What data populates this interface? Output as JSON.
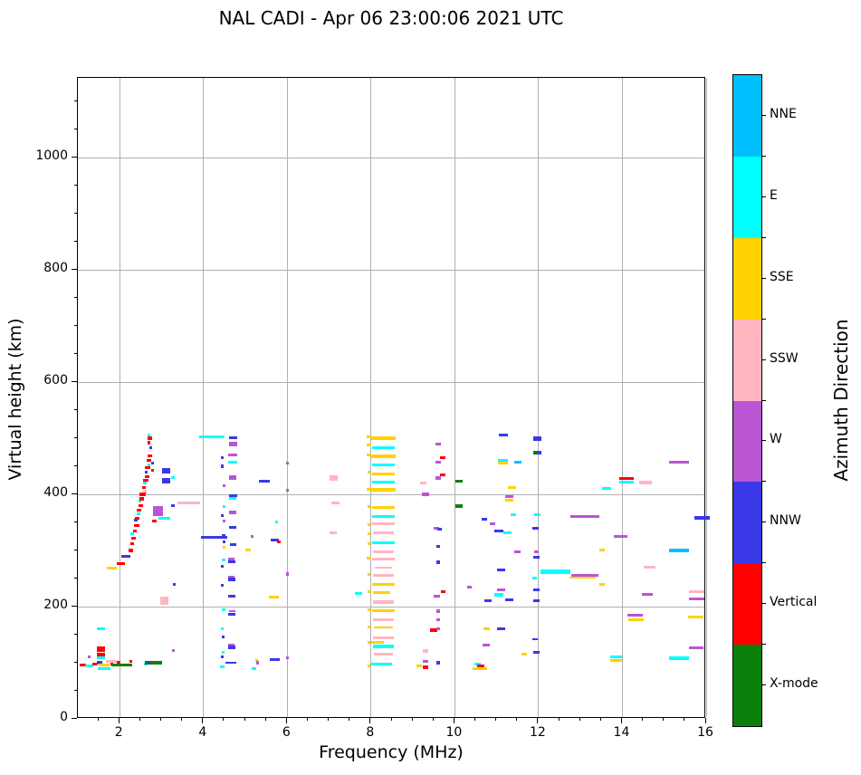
{
  "title": "NAL CADI - Apr 06 23:00:06 2021 UTC",
  "chart_data": {
    "type": "scatter",
    "title": "NAL CADI - Apr 06 23:00:06 2021 UTC",
    "xlabel": "Frequency (MHz)",
    "ylabel": "Virtual height (km)",
    "xlim": [
      1.0,
      16.0
    ],
    "ylim": [
      0,
      1142
    ],
    "x_ticks": [
      2,
      4,
      6,
      8,
      10,
      12,
      14,
      16
    ],
    "y_ticks": [
      0,
      200,
      400,
      600,
      800,
      1000
    ],
    "x_minor_step": 0.5,
    "y_minor_step": 50,
    "grid": true,
    "marker": "horizontal-dash",
    "legend": {
      "title": "Azimuth Direction",
      "position": "right-colorbar",
      "entries_top_to_bottom": [
        "NNE",
        "E",
        "SSE",
        "SSW",
        "W",
        "NNW",
        "Vertical",
        "X-mode"
      ]
    },
    "direction_codes": {
      "NNE": "NNE",
      "E": "E",
      "SSE": "SSE",
      "SSW": "SSW",
      "W": "W",
      "NNW": "NNW",
      "V": "Vertical",
      "X": "X-mode"
    },
    "colors": {
      "NNE": "#00BFFF",
      "E": "#00FFFF",
      "SSE": "#FFD200",
      "SSW": "#FFB6C1",
      "W": "#BA55D3",
      "NNW": "#3939E8",
      "V": "#FF0000",
      "X": "#0B800B"
    },
    "point_format": [
      "freq_MHz",
      "height_km",
      "direction_code",
      "span_MHz_optional",
      "span_km_optional"
    ],
    "points": [
      [
        1.12,
        96,
        "V",
        0.16
      ],
      [
        1.27,
        94,
        "E",
        0.18
      ],
      [
        1.28,
        111,
        "W",
        0.06
      ],
      [
        1.4,
        98,
        "V",
        0.12
      ],
      [
        1.52,
        100,
        "NNW",
        0.14
      ],
      [
        1.55,
        160,
        "E",
        0.2
      ],
      [
        1.55,
        124,
        "V",
        0.2,
        9
      ],
      [
        1.55,
        115,
        "V",
        0.18,
        6
      ],
      [
        1.55,
        109,
        "E",
        0.2
      ],
      [
        1.62,
        96,
        "SSE",
        0.26
      ],
      [
        1.62,
        89,
        "E",
        0.3
      ],
      [
        1.8,
        103,
        "SSW",
        0.28
      ],
      [
        1.8,
        97,
        "V",
        0.06
      ],
      [
        1.82,
        269,
        "SSE",
        0.24
      ],
      [
        1.97,
        101,
        "V",
        0.1
      ],
      [
        2.03,
        277,
        "V",
        0.18
      ],
      [
        2.05,
        96,
        "X",
        0.48
      ],
      [
        2.26,
        102,
        "V",
        0.06
      ],
      [
        2.15,
        290,
        "NNW",
        0.22
      ],
      [
        2.26,
        300,
        "V",
        0.1
      ],
      [
        2.3,
        312,
        "V",
        0.1
      ],
      [
        2.3,
        330,
        "E",
        0.08
      ],
      [
        2.33,
        322,
        "V",
        0.12
      ],
      [
        2.36,
        334,
        "V",
        0.1
      ],
      [
        2.38,
        354,
        "NNW",
        0.08
      ],
      [
        2.4,
        345,
        "V",
        0.12
      ],
      [
        2.42,
        358,
        "V",
        0.1
      ],
      [
        2.45,
        365,
        "E",
        0.08
      ],
      [
        2.46,
        372,
        "V",
        0.12
      ],
      [
        2.48,
        388,
        "E",
        0.07
      ],
      [
        2.5,
        380,
        "V",
        0.1
      ],
      [
        2.52,
        392,
        "V",
        0.1
      ],
      [
        2.55,
        400,
        "V",
        0.14
      ],
      [
        2.58,
        412,
        "V",
        0.1
      ],
      [
        2.6,
        405,
        "SSW",
        0.08
      ],
      [
        2.6,
        420,
        "E",
        0.08
      ],
      [
        2.62,
        425,
        "V",
        0.12
      ],
      [
        2.62,
        97,
        "E",
        0.07
      ],
      [
        2.65,
        432,
        "V",
        0.1
      ],
      [
        2.63,
        440,
        "NNW",
        0.08
      ],
      [
        2.67,
        447,
        "V",
        0.12
      ],
      [
        2.7,
        453,
        "E",
        0.08
      ],
      [
        2.7,
        460,
        "V",
        0.1
      ],
      [
        2.7,
        492,
        "V",
        0.08
      ],
      [
        2.7,
        505,
        "E",
        0.06
      ],
      [
        2.72,
        468,
        "V",
        0.12
      ],
      [
        2.72,
        500,
        "V",
        0.1
      ],
      [
        2.74,
        483,
        "NNW",
        0.08
      ],
      [
        2.78,
        455,
        "NNW",
        0.07
      ],
      [
        2.78,
        443,
        "V",
        0.08
      ],
      [
        2.8,
        100,
        "X",
        0.42
      ],
      [
        2.7,
        100,
        "NNW",
        0.07
      ],
      [
        2.82,
        352,
        "V",
        0.1
      ],
      [
        2.92,
        370,
        "W",
        0.24,
        18
      ],
      [
        3.06,
        357,
        "E",
        0.27
      ],
      [
        3.06,
        210,
        "SSW",
        0.2,
        14
      ],
      [
        3.1,
        442,
        "NNW",
        0.2,
        10
      ],
      [
        3.1,
        424,
        "NNW",
        0.2,
        10
      ],
      [
        3.27,
        430,
        "E",
        0.07
      ],
      [
        3.27,
        380,
        "NNW",
        0.07
      ],
      [
        3.27,
        122,
        "W",
        0.06
      ],
      [
        3.3,
        240,
        "NNW",
        0.07
      ],
      [
        3.65,
        384,
        "SSW",
        0.55,
        5
      ],
      [
        4.2,
        503,
        "E",
        0.6
      ],
      [
        4.25,
        323,
        "NNW",
        0.62
      ],
      [
        4.7,
        501,
        "NNW",
        0.2
      ],
      [
        4.7,
        490,
        "W",
        0.2,
        8
      ],
      [
        4.7,
        470,
        "W",
        0.22
      ],
      [
        4.45,
        465,
        "NNW",
        0.08
      ],
      [
        4.7,
        458,
        "E",
        0.22
      ],
      [
        4.45,
        450,
        "NNW",
        0.08
      ],
      [
        4.7,
        430,
        "W",
        0.18,
        7
      ],
      [
        4.5,
        415,
        "W",
        0.05
      ],
      [
        4.7,
        398,
        "NNW",
        0.2
      ],
      [
        4.7,
        393,
        "E",
        0.16
      ],
      [
        4.5,
        378,
        "E",
        0.06
      ],
      [
        4.7,
        368,
        "W",
        0.18,
        7
      ],
      [
        4.45,
        362,
        "NNW",
        0.07
      ],
      [
        4.5,
        352,
        "W",
        0.05
      ],
      [
        4.7,
        341,
        "NNW",
        0.16
      ],
      [
        4.48,
        327,
        "NNW",
        0.07
      ],
      [
        4.5,
        316,
        "NNW",
        0.06
      ],
      [
        4.7,
        310,
        "NNW",
        0.15
      ],
      [
        4.5,
        306,
        "SSE",
        0.05
      ],
      [
        4.48,
        283,
        "E",
        0.07
      ],
      [
        4.67,
        285,
        "W",
        0.16,
        4
      ],
      [
        4.67,
        280,
        "NNW",
        0.18,
        6
      ],
      [
        4.45,
        272,
        "NNW",
        0.07
      ],
      [
        4.67,
        253,
        "W",
        0.16,
        4
      ],
      [
        4.67,
        248,
        "NNW",
        0.18,
        6
      ],
      [
        4.45,
        238,
        "NNW",
        0.07
      ],
      [
        4.67,
        219,
        "NNW",
        0.17
      ],
      [
        4.48,
        195,
        "E",
        0.07
      ],
      [
        4.68,
        192,
        "W",
        0.16,
        4
      ],
      [
        4.68,
        187,
        "NNW",
        0.17,
        5
      ],
      [
        4.45,
        160,
        "E",
        0.07
      ],
      [
        4.47,
        146,
        "NNW",
        0.07
      ],
      [
        4.67,
        132,
        "W",
        0.16,
        4
      ],
      [
        4.67,
        127,
        "NNW",
        0.17,
        6
      ],
      [
        4.47,
        118,
        "E",
        0.07
      ],
      [
        4.44,
        110,
        "NNW",
        0.07
      ],
      [
        4.65,
        100,
        "NNW",
        0.26,
        3
      ],
      [
        4.45,
        93,
        "E",
        0.1
      ],
      [
        5.06,
        301,
        "SSE",
        0.14
      ],
      [
        5.17,
        325,
        "W",
        0.06
      ],
      [
        5.2,
        90,
        "E",
        0.12
      ],
      [
        5.27,
        104,
        "SSE",
        0.05
      ],
      [
        5.28,
        100,
        "W",
        0.06
      ],
      [
        5.45,
        423,
        "NNW",
        0.26
      ],
      [
        5.68,
        217,
        "SSE",
        0.24
      ],
      [
        5.7,
        319,
        "NNW",
        0.2
      ],
      [
        5.8,
        316,
        "V",
        0.07
      ],
      [
        5.75,
        351,
        "E",
        0.06
      ],
      [
        5.7,
        106,
        "NNW",
        0.24
      ],
      [
        6.0,
        455,
        "W",
        0.05
      ],
      [
        6.0,
        408,
        "W",
        0.05
      ],
      [
        6.0,
        258,
        "W",
        0.05
      ],
      [
        6.0,
        109,
        "W",
        0.05
      ],
      [
        7.1,
        432,
        "SSW",
        0.2
      ],
      [
        7.1,
        426,
        "SSW",
        0.2
      ],
      [
        7.15,
        385,
        "SSW",
        0.2
      ],
      [
        7.1,
        332,
        "SSW",
        0.18
      ],
      [
        7.7,
        224,
        "E",
        0.16
      ],
      [
        8.3,
        500,
        "SSE",
        0.58,
        6
      ],
      [
        8.3,
        483,
        "E",
        0.55
      ],
      [
        8.3,
        468,
        "SSE",
        0.58,
        6
      ],
      [
        8.3,
        453,
        "E",
        0.55
      ],
      [
        8.3,
        437,
        "SSE",
        0.55
      ],
      [
        8.3,
        422,
        "E",
        0.55
      ],
      [
        8.3,
        408,
        "SSE",
        0.58,
        6
      ],
      [
        8.3,
        376,
        "SSE",
        0.55
      ],
      [
        8.3,
        361,
        "E",
        0.55
      ],
      [
        8.3,
        347,
        "SSW",
        0.55
      ],
      [
        8.3,
        331,
        "SSW",
        0.5
      ],
      [
        8.3,
        313,
        "E",
        0.55
      ],
      [
        8.3,
        298,
        "SSW",
        0.5
      ],
      [
        8.3,
        284,
        "SSW",
        0.55
      ],
      [
        8.3,
        270,
        "SSW",
        0.4,
        3
      ],
      [
        8.3,
        255,
        "SSW",
        0.5
      ],
      [
        8.3,
        240,
        "SSE",
        0.55
      ],
      [
        8.25,
        225,
        "SSE",
        0.42
      ],
      [
        8.3,
        208,
        "SSW",
        0.5
      ],
      [
        8.3,
        193,
        "SSE",
        0.55
      ],
      [
        8.3,
        177,
        "SSW",
        0.5
      ],
      [
        8.3,
        163,
        "SSE",
        0.45,
        3
      ],
      [
        8.3,
        145,
        "SSW",
        0.5
      ],
      [
        8.15,
        137,
        "SSE",
        0.3
      ],
      [
        8.3,
        129,
        "E",
        0.5
      ],
      [
        8.3,
        115,
        "SSW",
        0.45
      ],
      [
        8.25,
        97,
        "E",
        0.5
      ],
      [
        7.95,
        502,
        "SSE",
        0.1
      ],
      [
        7.95,
        488,
        "SSE",
        0.1
      ],
      [
        7.95,
        470,
        "SSE",
        0.1
      ],
      [
        7.95,
        440,
        "SSE",
        0.08
      ],
      [
        7.95,
        409,
        "SSE",
        0.1
      ],
      [
        7.95,
        378,
        "SSE",
        0.08
      ],
      [
        7.95,
        346,
        "SSE",
        0.08
      ],
      [
        7.95,
        330,
        "SSE",
        0.08
      ],
      [
        7.95,
        312,
        "SSE",
        0.08
      ],
      [
        7.95,
        286,
        "SSE",
        0.1
      ],
      [
        7.95,
        257,
        "SSE",
        0.08
      ],
      [
        7.95,
        226,
        "SSE",
        0.08
      ],
      [
        7.95,
        194,
        "SSE",
        0.08
      ],
      [
        7.95,
        163,
        "SSE",
        0.08
      ],
      [
        7.95,
        137,
        "SSE",
        0.08
      ],
      [
        7.95,
        95,
        "SSE",
        0.08
      ],
      [
        9.25,
        420,
        "SSW",
        0.16
      ],
      [
        9.3,
        400,
        "W",
        0.16
      ],
      [
        9.6,
        490,
        "W",
        0.13
      ],
      [
        9.6,
        458,
        "W",
        0.13
      ],
      [
        9.72,
        466,
        "V",
        0.13
      ],
      [
        9.6,
        429,
        "W",
        0.13
      ],
      [
        9.72,
        435,
        "V",
        0.13
      ],
      [
        9.57,
        340,
        "W",
        0.13
      ],
      [
        9.63,
        338,
        "NNW",
        0.1
      ],
      [
        9.6,
        308,
        "NNW",
        0.1
      ],
      [
        9.6,
        279,
        "NNW",
        0.1
      ],
      [
        9.57,
        219,
        "W",
        0.14
      ],
      [
        9.72,
        227,
        "V",
        0.1
      ],
      [
        9.6,
        192,
        "W",
        0.1
      ],
      [
        9.6,
        177,
        "W",
        0.1
      ],
      [
        9.5,
        158,
        "V",
        0.17
      ],
      [
        9.6,
        160,
        "W",
        0.1
      ],
      [
        9.3,
        121,
        "SSW",
        0.15
      ],
      [
        9.3,
        103,
        "W",
        0.15
      ],
      [
        9.15,
        95,
        "SSE",
        0.12
      ],
      [
        9.3,
        92,
        "V",
        0.15
      ],
      [
        9.6,
        100,
        "NNW",
        0.1
      ],
      [
        10.1,
        423,
        "X",
        0.18
      ],
      [
        10.1,
        379,
        "X",
        0.18
      ],
      [
        10.35,
        235,
        "W",
        0.12
      ],
      [
        10.55,
        98,
        "E",
        0.15
      ],
      [
        10.62,
        95,
        "V",
        0.18
      ],
      [
        10.6,
        90,
        "SSE",
        0.36
      ],
      [
        10.75,
        161,
        "SSE",
        0.15
      ],
      [
        10.75,
        131,
        "W",
        0.17
      ],
      [
        10.7,
        355,
        "NNW",
        0.14
      ],
      [
        10.8,
        211,
        "NNW",
        0.17
      ],
      [
        10.9,
        347,
        "W",
        0.12
      ],
      [
        11.15,
        505,
        "NNW",
        0.22
      ],
      [
        11.15,
        461,
        "E",
        0.24
      ],
      [
        11.15,
        455,
        "SSE",
        0.24
      ],
      [
        11.5,
        458,
        "NNE",
        0.18
      ],
      [
        11.37,
        412,
        "SSE",
        0.2
      ],
      [
        11.3,
        396,
        "W",
        0.2
      ],
      [
        11.3,
        390,
        "SSE",
        0.18
      ],
      [
        11.4,
        364,
        "E",
        0.12
      ],
      [
        11.05,
        334,
        "NNW",
        0.2
      ],
      [
        11.25,
        332,
        "E",
        0.2
      ],
      [
        11.5,
        298,
        "W",
        0.15
      ],
      [
        11.1,
        266,
        "NNW",
        0.2
      ],
      [
        11.05,
        221,
        "E",
        0.2
      ],
      [
        11.1,
        230,
        "W",
        0.2
      ],
      [
        11.3,
        212,
        "NNW",
        0.2
      ],
      [
        11.1,
        160,
        "NNW",
        0.2
      ],
      [
        11.65,
        116,
        "SSE",
        0.12
      ],
      [
        11.97,
        499,
        "NNW",
        0.2,
        8
      ],
      [
        11.93,
        474,
        "X",
        0.1,
        7
      ],
      [
        12.02,
        474,
        "NNW",
        0.08,
        7
      ],
      [
        11.97,
        364,
        "E",
        0.15
      ],
      [
        11.93,
        340,
        "NNW",
        0.14
      ],
      [
        11.95,
        297,
        "W",
        0.12
      ],
      [
        11.95,
        288,
        "NNW",
        0.14
      ],
      [
        11.9,
        251,
        "E",
        0.1
      ],
      [
        11.95,
        230,
        "NNW",
        0.14
      ],
      [
        11.95,
        211,
        "NNW",
        0.15
      ],
      [
        11.92,
        142,
        "NNW",
        0.12,
        3
      ],
      [
        11.95,
        119,
        "NNW",
        0.15
      ],
      [
        12.4,
        262,
        "E",
        0.7,
        7
      ],
      [
        13.1,
        360,
        "W",
        0.68
      ],
      [
        13.1,
        256,
        "W",
        0.65
      ],
      [
        13.05,
        251,
        "SSE",
        0.62,
        3
      ],
      [
        13.52,
        301,
        "SSE",
        0.14
      ],
      [
        13.52,
        239,
        "SSE",
        0.14
      ],
      [
        13.62,
        410,
        "E",
        0.2
      ],
      [
        13.95,
        325,
        "W",
        0.33,
        6
      ],
      [
        14.1,
        428,
        "V",
        0.33,
        5
      ],
      [
        14.1,
        422,
        "E",
        0.33
      ],
      [
        14.55,
        421,
        "SSW",
        0.3
      ],
      [
        14.65,
        270,
        "SSW",
        0.28
      ],
      [
        14.6,
        222,
        "W",
        0.27
      ],
      [
        14.3,
        184,
        "W",
        0.37,
        5
      ],
      [
        14.32,
        176,
        "SSE",
        0.37
      ],
      [
        13.85,
        110,
        "E",
        0.3
      ],
      [
        13.85,
        104,
        "SSE",
        0.3
      ],
      [
        15.35,
        458,
        "W",
        0.48
      ],
      [
        15.9,
        358,
        "NNW",
        0.36,
        6
      ],
      [
        15.35,
        300,
        "NNE",
        0.48
      ],
      [
        15.78,
        227,
        "SSW",
        0.37
      ],
      [
        15.78,
        213,
        "W",
        0.37
      ],
      [
        15.75,
        182,
        "SSE",
        0.37
      ],
      [
        15.77,
        127,
        "W",
        0.35
      ],
      [
        15.35,
        108,
        "E",
        0.48
      ]
    ]
  }
}
